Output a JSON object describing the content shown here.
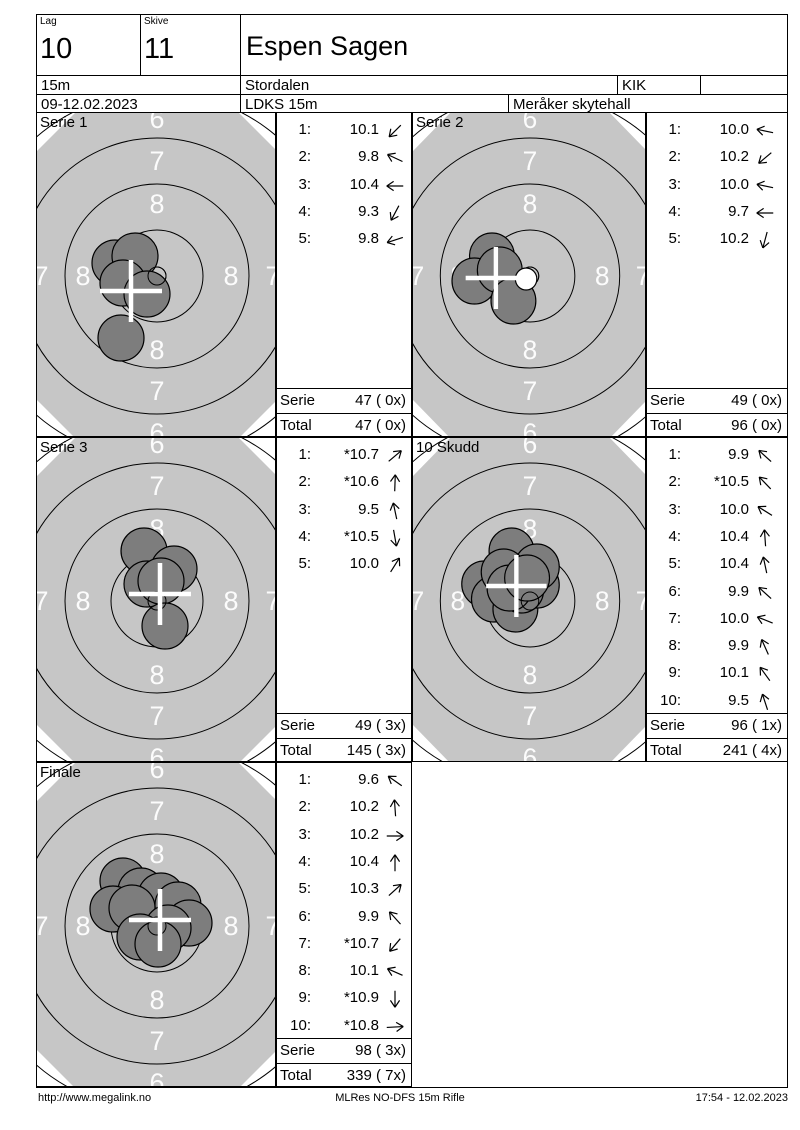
{
  "header": {
    "lag_label": "Lag",
    "lag_value": "10",
    "skive_label": "Skive",
    "skive_value": "11",
    "shooter_name": "Espen Sagen",
    "distance": "15m",
    "club": "Stordalen",
    "class": "KIK",
    "date_range": "09-12.02.2023",
    "event": "LDKS 15m",
    "venue": "Meråker skytehall"
  },
  "labels": {
    "serie": "Serie",
    "total": "Total"
  },
  "footer": {
    "url": "http://www.megalink.no",
    "report_name": "MLRes NO-DFS 15m Rifle",
    "timestamp": "17:54 - 12.02.2023"
  },
  "colors": {
    "target_bg": "#c6c6c6",
    "shot_fill": "#7d7d7d",
    "ring_line": "#000000",
    "ring_label": "#fcfcfc",
    "cross": "#ffffff"
  },
  "ring_labels": [
    "6",
    "7",
    "8"
  ],
  "series": [
    {
      "title": "Serie 1",
      "shots": [
        {
          "n": "1:",
          "v": "10.1",
          "dir": 135
        },
        {
          "n": "2:",
          "v": "9.8",
          "dir": 205
        },
        {
          "n": "3:",
          "v": "10.4",
          "dir": 180
        },
        {
          "n": "4:",
          "v": "9.3",
          "dir": 118
        },
        {
          "n": "5:",
          "v": "9.8",
          "dir": 162
        }
      ],
      "serie_score": "47 ( 0x)",
      "total_score": "47 ( 0x)",
      "target": {
        "cross": [
          94,
          178
        ],
        "hits": [
          [
            78,
            150
          ],
          [
            98,
            143
          ],
          [
            86,
            170
          ],
          [
            110,
            181
          ],
          [
            84,
            225
          ]
        ],
        "white_hit": null
      }
    },
    {
      "title": "Serie 2",
      "shots": [
        {
          "n": "1:",
          "v": "10.0",
          "dir": 192
        },
        {
          "n": "2:",
          "v": "10.2",
          "dir": 140
        },
        {
          "n": "3:",
          "v": "10.0",
          "dir": 192
        },
        {
          "n": "4:",
          "v": "9.7",
          "dir": 180
        },
        {
          "n": "5:",
          "v": "10.2",
          "dir": 105
        }
      ],
      "serie_score": "49 ( 0x)",
      "total_score": "96 ( 0x)",
      "target": {
        "cross": [
          85,
          165
        ],
        "hits": [
          [
            81,
            143
          ],
          [
            63,
            168
          ],
          [
            89,
            157
          ],
          [
            103,
            188
          ]
        ],
        "white_hit": [
          116,
          166
        ]
      }
    },
    {
      "title": "Serie 3",
      "shots": [
        {
          "n": "1:",
          "v": "*10.7",
          "dir": 320
        },
        {
          "n": "2:",
          "v": "*10.6",
          "dir": 272
        },
        {
          "n": "3:",
          "v": "9.5",
          "dir": 258
        },
        {
          "n": "4:",
          "v": "*10.5",
          "dir": 80
        },
        {
          "n": "5:",
          "v": "10.0",
          "dir": 302
        }
      ],
      "serie_score": "49 ( 3x)",
      "total_score": "145 ( 3x)",
      "target": {
        "cross": [
          123,
          156
        ],
        "hits": [
          [
            107,
            113
          ],
          [
            137,
            131
          ],
          [
            110,
            146
          ],
          [
            124,
            143
          ],
          [
            128,
            188
          ]
        ],
        "white_hit": null
      }
    },
    {
      "title": "10 Skudd",
      "shots": [
        {
          "n": "1:",
          "v": "9.9",
          "dir": 222
        },
        {
          "n": "2:",
          "v": "*10.5",
          "dir": 226
        },
        {
          "n": "3:",
          "v": "10.0",
          "dir": 212
        },
        {
          "n": "4:",
          "v": "10.4",
          "dir": 266
        },
        {
          "n": "5:",
          "v": "10.4",
          "dir": 258
        },
        {
          "n": "6:",
          "v": "9.9",
          "dir": 222
        },
        {
          "n": "7:",
          "v": "10.0",
          "dir": 202
        },
        {
          "n": "8:",
          "v": "9.9",
          "dir": 246
        },
        {
          "n": "9:",
          "v": "10.1",
          "dir": 234
        },
        {
          "n": "10:",
          "v": "9.5",
          "dir": 252
        }
      ],
      "serie_score": "96 ( 1x)",
      "total_score": "241 ( 4x)",
      "target": {
        "cross": [
          106,
          148
        ],
        "hits": [
          [
            101,
            113
          ],
          [
            73,
            146
          ],
          [
            83,
            161
          ],
          [
            105,
            171
          ],
          [
            127,
            147
          ],
          [
            127,
            129
          ],
          [
            93,
            134
          ],
          [
            111,
            152
          ],
          [
            99,
            150
          ],
          [
            117,
            140
          ]
        ],
        "white_hit": null
      }
    },
    {
      "title": "Finale",
      "shots": [
        {
          "n": "1:",
          "v": "9.6",
          "dir": 215
        },
        {
          "n": "2:",
          "v": "10.2",
          "dir": 266
        },
        {
          "n": "3:",
          "v": "10.2",
          "dir": 0
        },
        {
          "n": "4:",
          "v": "10.4",
          "dir": 270
        },
        {
          "n": "5:",
          "v": "10.3",
          "dir": 318
        },
        {
          "n": "6:",
          "v": "9.9",
          "dir": 228
        },
        {
          "n": "7:",
          "v": "*10.7",
          "dir": 130
        },
        {
          "n": "8:",
          "v": "10.1",
          "dir": 204
        },
        {
          "n": "9:",
          "v": "*10.9",
          "dir": 90
        },
        {
          "n": "10:",
          "v": "*10.8",
          "dir": 357
        }
      ],
      "serie_score": "98 ( 3x)",
      "total_score": "339 ( 7x)",
      "target": {
        "cross": [
          123,
          157
        ],
        "hits": [
          [
            86,
            118
          ],
          [
            104,
            128
          ],
          [
            124,
            133
          ],
          [
            141,
            142
          ],
          [
            152,
            160
          ],
          [
            76,
            146
          ],
          [
            95,
            145
          ],
          [
            131,
            165
          ],
          [
            103,
            174
          ],
          [
            121,
            181
          ]
        ],
        "white_hit": null
      }
    }
  ]
}
